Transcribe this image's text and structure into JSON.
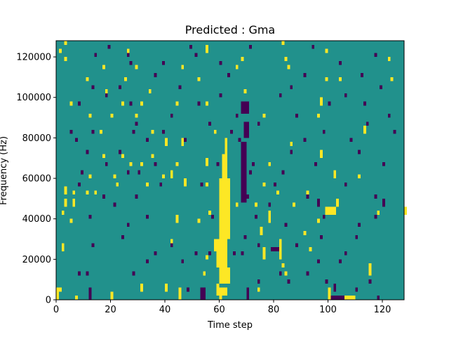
{
  "chart_data": {
    "type": "heatmap",
    "title": "Predicted : Gma",
    "xlabel": "Time step",
    "ylabel": "Frequency (Hz)",
    "xlim": [
      0,
      128
    ],
    "ylim": [
      0,
      128000
    ],
    "xticks": [
      0,
      20,
      40,
      60,
      80,
      100,
      120
    ],
    "yticks": [
      0,
      20000,
      40000,
      60000,
      80000,
      100000,
      120000
    ],
    "grid": false,
    "colors": {
      "background": "#21918c",
      "high": "#fde725",
      "low": "#440154"
    },
    "cell_height": 2000,
    "segments_high": [
      [
        3,
        0,
        0
      ],
      [
        2,
        0,
        20
      ],
      [
        1,
        0,
        7
      ],
      [
        3,
        0,
        45
      ],
      [
        2,
        0,
        60
      ],
      [
        3,
        0,
        100
      ],
      [
        1,
        4,
        1
      ],
      [
        2,
        4,
        31
      ],
      [
        2,
        4,
        40
      ],
      [
        2,
        4,
        59
      ],
      [
        1,
        4,
        74
      ],
      [
        1,
        12,
        54
      ],
      [
        1,
        12,
        84
      ],
      [
        3,
        12,
        115
      ],
      [
        1,
        16,
        83
      ],
      [
        1,
        20,
        55
      ],
      [
        3,
        20,
        76
      ],
      [
        5,
        20,
        82
      ],
      [
        2,
        24,
        2
      ],
      [
        3,
        24,
        58
      ],
      [
        1,
        24,
        93
      ],
      [
        1,
        28,
        42
      ],
      [
        1,
        28,
        58
      ],
      [
        1,
        32,
        62
      ],
      [
        2,
        32,
        75
      ],
      [
        1,
        32,
        91
      ],
      [
        1,
        38,
        5
      ],
      [
        2,
        38,
        44
      ],
      [
        1,
        38,
        52
      ],
      [
        3,
        38,
        78
      ],
      [
        1,
        38,
        96
      ],
      [
        1,
        42,
        2
      ],
      [
        1,
        42,
        56
      ],
      [
        1,
        42,
        118
      ],
      [
        2,
        42,
        128
      ],
      [
        2,
        46,
        3
      ],
      [
        2,
        46,
        6
      ],
      [
        1,
        46,
        61
      ],
      [
        1,
        46,
        66
      ],
      [
        1,
        46,
        73
      ],
      [
        1,
        46,
        87
      ],
      [
        2,
        46,
        103
      ],
      [
        2,
        52,
        3
      ],
      [
        1,
        52,
        6
      ],
      [
        1,
        52,
        11
      ],
      [
        1,
        52,
        14
      ],
      [
        1,
        52,
        81
      ],
      [
        1,
        52,
        92
      ],
      [
        1,
        56,
        22
      ],
      [
        1,
        56,
        33
      ],
      [
        2,
        56,
        47
      ],
      [
        1,
        56,
        55
      ],
      [
        2,
        56,
        63
      ],
      [
        1,
        56,
        76
      ],
      [
        1,
        60,
        12
      ],
      [
        1,
        60,
        21
      ],
      [
        1,
        60,
        39
      ],
      [
        2,
        60,
        42
      ],
      [
        2,
        60,
        102
      ],
      [
        1,
        60,
        111
      ],
      [
        1,
        66,
        27
      ],
      [
        1,
        66,
        31
      ],
      [
        1,
        66,
        44
      ],
      [
        2,
        66,
        55
      ],
      [
        1,
        66,
        78
      ],
      [
        1,
        70,
        17
      ],
      [
        1,
        70,
        24
      ],
      [
        1,
        70,
        35
      ],
      [
        1,
        70,
        62
      ],
      [
        2,
        70,
        97
      ],
      [
        2,
        76,
        40
      ],
      [
        2,
        76,
        46
      ],
      [
        1,
        76,
        86
      ],
      [
        1,
        82,
        16
      ],
      [
        1,
        82,
        35
      ],
      [
        1,
        82,
        58
      ],
      [
        2,
        82,
        113
      ],
      [
        1,
        90,
        12
      ],
      [
        1,
        90,
        20
      ],
      [
        1,
        90,
        29
      ],
      [
        1,
        90,
        76
      ],
      [
        1,
        90,
        96
      ],
      [
        1,
        96,
        5
      ],
      [
        1,
        96,
        24
      ],
      [
        1,
        96,
        31
      ],
      [
        1,
        96,
        44
      ],
      [
        1,
        96,
        55
      ],
      [
        2,
        96,
        97
      ],
      [
        1,
        102,
        18
      ],
      [
        1,
        102,
        34
      ],
      [
        1,
        102,
        69
      ],
      [
        1,
        108,
        11
      ],
      [
        1,
        108,
        25
      ],
      [
        1,
        108,
        52
      ],
      [
        1,
        108,
        99
      ],
      [
        1,
        108,
        104
      ],
      [
        1,
        108,
        123
      ],
      [
        1,
        114,
        17
      ],
      [
        1,
        114,
        29
      ],
      [
        1,
        114,
        46
      ],
      [
        1,
        114,
        66
      ],
      [
        1,
        114,
        85
      ],
      [
        1,
        118,
        3
      ],
      [
        1,
        118,
        68
      ],
      [
        1,
        118,
        84
      ],
      [
        1,
        118,
        122
      ],
      [
        1,
        122,
        1
      ],
      [
        1,
        122,
        26
      ],
      [
        2,
        122,
        55
      ],
      [
        1,
        122,
        99
      ],
      [
        1,
        126,
        3
      ],
      [
        1,
        126,
        83
      ]
    ],
    "segments_low": [
      [
        2,
        0,
        54
      ],
      [
        3,
        0,
        12
      ],
      [
        3,
        0,
        70
      ],
      [
        1,
        0,
        106
      ],
      [
        1,
        0,
        118
      ],
      [
        1,
        4,
        48
      ],
      [
        2,
        4,
        102
      ],
      [
        1,
        4,
        110
      ],
      [
        1,
        8,
        74
      ],
      [
        1,
        8,
        85
      ],
      [
        1,
        8,
        99
      ],
      [
        1,
        8,
        115
      ],
      [
        1,
        12,
        8
      ],
      [
        1,
        12,
        11
      ],
      [
        1,
        12,
        28
      ],
      [
        1,
        12,
        82
      ],
      [
        1,
        12,
        92
      ],
      [
        1,
        18,
        33
      ],
      [
        1,
        18,
        46
      ],
      [
        1,
        18,
        96
      ],
      [
        1,
        18,
        104
      ],
      [
        1,
        22,
        36
      ],
      [
        1,
        22,
        51
      ],
      [
        1,
        22,
        56
      ],
      [
        1,
        22,
        65
      ],
      [
        1,
        22,
        68
      ],
      [
        1,
        22,
        106
      ],
      [
        1,
        26,
        13
      ],
      [
        1,
        26,
        42
      ],
      [
        1,
        26,
        74
      ],
      [
        1,
        26,
        88
      ],
      [
        1,
        30,
        24
      ],
      [
        1,
        30,
        69
      ],
      [
        1,
        30,
        97
      ],
      [
        1,
        30,
        110
      ],
      [
        1,
        36,
        26
      ],
      [
        1,
        36,
        84
      ],
      [
        1,
        36,
        111
      ],
      [
        1,
        40,
        12
      ],
      [
        1,
        40,
        33
      ],
      [
        1,
        40,
        57
      ],
      [
        1,
        40,
        73
      ],
      [
        1,
        40,
        98
      ],
      [
        1,
        40,
        117
      ],
      [
        1,
        46,
        21
      ],
      [
        1,
        46,
        78
      ],
      [
        2,
        46,
        96
      ],
      [
        2,
        46,
        120
      ],
      [
        1,
        50,
        17
      ],
      [
        1,
        50,
        29
      ],
      [
        1,
        50,
        70
      ],
      [
        1,
        50,
        92
      ],
      [
        1,
        50,
        117
      ],
      [
        1,
        56,
        8
      ],
      [
        1,
        56,
        38
      ],
      [
        1,
        56,
        53
      ],
      [
        1,
        56,
        63
      ],
      [
        1,
        56,
        80
      ],
      [
        1,
        56,
        106
      ],
      [
        1,
        62,
        9
      ],
      [
        1,
        62,
        26
      ],
      [
        1,
        62,
        30
      ],
      [
        1,
        62,
        71
      ],
      [
        1,
        62,
        83
      ],
      [
        1,
        66,
        18
      ],
      [
        1,
        66,
        36
      ],
      [
        1,
        66,
        59
      ],
      [
        1,
        66,
        72
      ],
      [
        1,
        66,
        95
      ],
      [
        1,
        66,
        120
      ],
      [
        1,
        72,
        11
      ],
      [
        1,
        72,
        23
      ],
      [
        1,
        72,
        86
      ],
      [
        1,
        72,
        111
      ],
      [
        1,
        78,
        7
      ],
      [
        1,
        78,
        33
      ],
      [
        1,
        78,
        47
      ],
      [
        1,
        78,
        67
      ],
      [
        1,
        78,
        91
      ],
      [
        1,
        78,
        108
      ],
      [
        1,
        82,
        5
      ],
      [
        1,
        82,
        13
      ],
      [
        1,
        82,
        28
      ],
      [
        1,
        82,
        39
      ],
      [
        1,
        82,
        64
      ],
      [
        1,
        82,
        98
      ],
      [
        1,
        82,
        124
      ],
      [
        1,
        86,
        29
      ],
      [
        1,
        86,
        56
      ],
      [
        1,
        86,
        74
      ],
      [
        1,
        86,
        114
      ],
      [
        1,
        90,
        42
      ],
      [
        1,
        90,
        66
      ],
      [
        1,
        90,
        88
      ],
      [
        1,
        90,
        122
      ],
      [
        1,
        96,
        8
      ],
      [
        1,
        96,
        27
      ],
      [
        1,
        96,
        52
      ],
      [
        1,
        96,
        70
      ],
      [
        1,
        96,
        100
      ],
      [
        1,
        96,
        113
      ],
      [
        1,
        100,
        18
      ],
      [
        1,
        100,
        60
      ],
      [
        1,
        100,
        82
      ],
      [
        1,
        100,
        106
      ],
      [
        1,
        104,
        13
      ],
      [
        1,
        104,
        23
      ],
      [
        1,
        104,
        45
      ],
      [
        1,
        104,
        86
      ],
      [
        1,
        104,
        119
      ],
      [
        1,
        110,
        36
      ],
      [
        1,
        110,
        63
      ],
      [
        1,
        110,
        91
      ],
      [
        1,
        110,
        112
      ],
      [
        1,
        116,
        27
      ],
      [
        1,
        116,
        39
      ],
      [
        1,
        116,
        60
      ],
      [
        1,
        116,
        104
      ],
      [
        1,
        120,
        14
      ],
      [
        1,
        120,
        26
      ],
      [
        1,
        120,
        51
      ],
      [
        1,
        120,
        117
      ],
      [
        1,
        124,
        19
      ],
      [
        1,
        124,
        49
      ],
      [
        1,
        124,
        71
      ],
      [
        1,
        124,
        94
      ]
    ],
    "blocks_high": [
      [
        59,
        63,
        2000,
        6000
      ],
      [
        60,
        64,
        8000,
        16000
      ],
      [
        59,
        63,
        16000,
        30000
      ],
      [
        60,
        64,
        30000,
        60000
      ],
      [
        61,
        63,
        60000,
        72000
      ],
      [
        62,
        63,
        72000,
        80000
      ],
      [
        105,
        110,
        0,
        2000
      ],
      [
        99,
        103,
        42000,
        46000
      ]
    ],
    "blocks_low": [
      [
        53,
        55,
        0,
        6000
      ],
      [
        68,
        70,
        48000,
        78000
      ],
      [
        69,
        71,
        80000,
        88000
      ],
      [
        101,
        106,
        0,
        2000
      ],
      [
        68,
        71,
        92000,
        98000
      ],
      [
        79,
        82,
        24000,
        26000
      ]
    ]
  }
}
